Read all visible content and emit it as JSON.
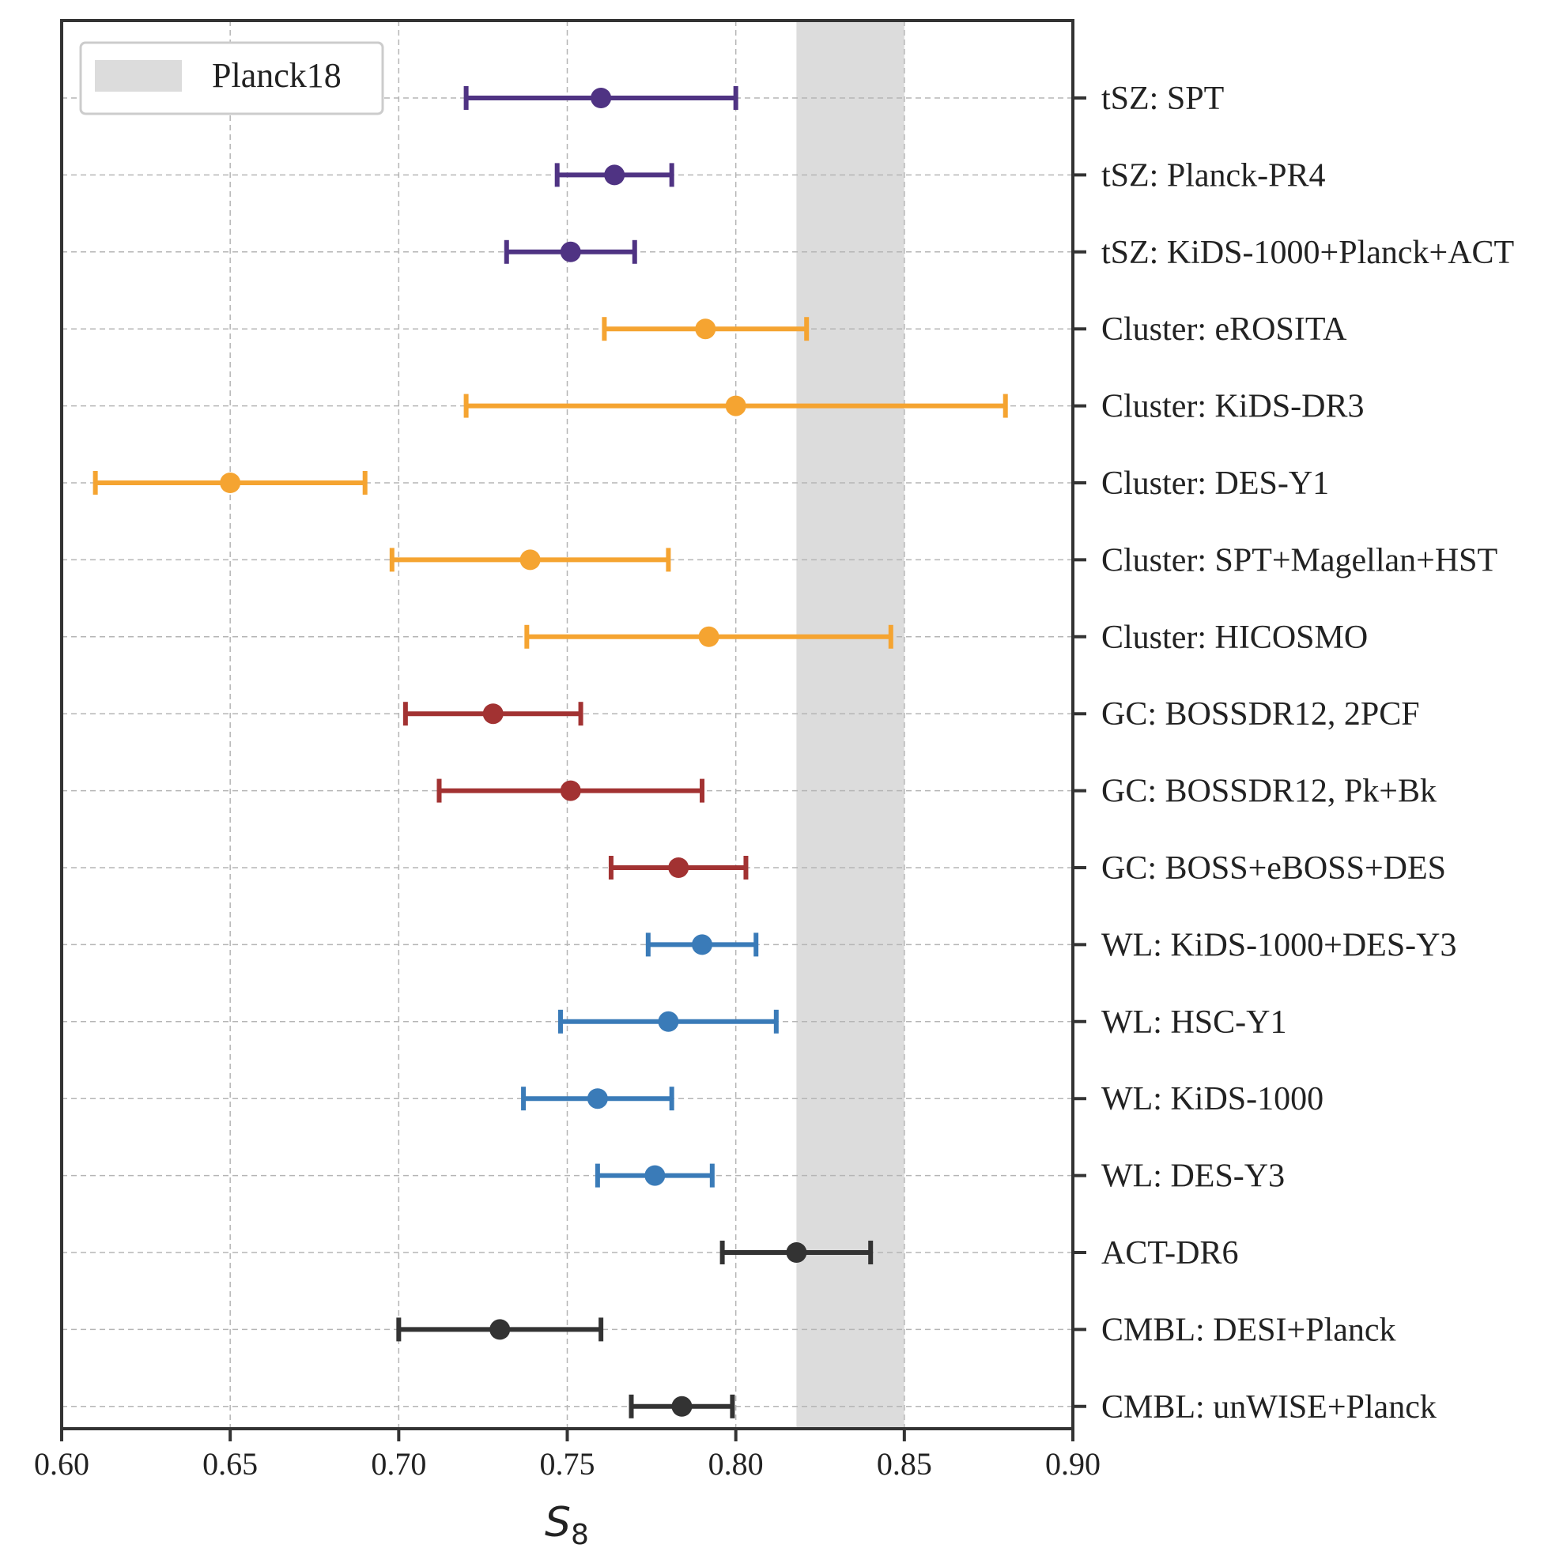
{
  "chart_data": {
    "type": "errorbar",
    "title": "",
    "xlabel": "S",
    "xlabel_subscript": "8",
    "ylabel": "",
    "xlim": [
      0.6,
      0.9
    ],
    "xticks": [
      "0.60",
      "0.65",
      "0.70",
      "0.75",
      "0.80",
      "0.85",
      "0.90"
    ],
    "grid": true,
    "legend": {
      "position": "top-left",
      "entries": [
        {
          "label": "Planck18",
          "color": "#dcdcdc"
        }
      ]
    },
    "reference_band": {
      "name": "Planck18",
      "xmin": 0.818,
      "xmax": 0.85,
      "color": "#dcdcdc"
    },
    "colors": {
      "tSZ": "#4f3383",
      "Cluster": "#f5a431",
      "GC": "#a23232",
      "WL": "#3a7bb8",
      "CMB": "#333333"
    },
    "points": [
      {
        "label": "tSZ: SPT",
        "value": 0.76,
        "low": 0.72,
        "high": 0.8,
        "group": "tSZ"
      },
      {
        "label": "tSZ: Planck-PR4",
        "value": 0.764,
        "low": 0.747,
        "high": 0.781,
        "group": "tSZ"
      },
      {
        "label": "tSZ: KiDS-1000+Planck+ACT",
        "value": 0.751,
        "low": 0.732,
        "high": 0.77,
        "group": "tSZ"
      },
      {
        "label": "Cluster: eROSITA",
        "value": 0.791,
        "low": 0.761,
        "high": 0.821,
        "group": "Cluster"
      },
      {
        "label": "Cluster: KiDS-DR3",
        "value": 0.8,
        "low": 0.72,
        "high": 0.88,
        "group": "Cluster"
      },
      {
        "label": "Cluster: DES-Y1",
        "value": 0.65,
        "low": 0.61,
        "high": 0.69,
        "group": "Cluster"
      },
      {
        "label": "Cluster: SPT+Magellan+HST",
        "value": 0.739,
        "low": 0.698,
        "high": 0.78,
        "group": "Cluster"
      },
      {
        "label": "Cluster: HICOSMO",
        "value": 0.792,
        "low": 0.738,
        "high": 0.846,
        "group": "Cluster"
      },
      {
        "label": "GC: BOSSDR12, 2PCF",
        "value": 0.728,
        "low": 0.702,
        "high": 0.754,
        "group": "GC"
      },
      {
        "label": "GC: BOSSDR12, Pk+Bk",
        "value": 0.751,
        "low": 0.712,
        "high": 0.79,
        "group": "GC"
      },
      {
        "label": "GC: BOSS+eBOSS+DES",
        "value": 0.783,
        "low": 0.763,
        "high": 0.803,
        "group": "GC"
      },
      {
        "label": "WL: KiDS-1000+DES-Y3",
        "value": 0.79,
        "low": 0.774,
        "high": 0.806,
        "group": "WL"
      },
      {
        "label": "WL: HSC-Y1",
        "value": 0.78,
        "low": 0.748,
        "high": 0.812,
        "group": "WL"
      },
      {
        "label": "WL: KiDS-1000",
        "value": 0.759,
        "low": 0.737,
        "high": 0.781,
        "group": "WL"
      },
      {
        "label": "WL: DES-Y3",
        "value": 0.776,
        "low": 0.759,
        "high": 0.793,
        "group": "WL"
      },
      {
        "label": "ACT-DR6",
        "value": 0.818,
        "low": 0.796,
        "high": 0.84,
        "group": "CMB"
      },
      {
        "label": "CMBL: DESI+Planck",
        "value": 0.73,
        "low": 0.7,
        "high": 0.76,
        "group": "CMB"
      },
      {
        "label": "CMBL: unWISE+Planck",
        "value": 0.784,
        "low": 0.769,
        "high": 0.799,
        "group": "CMB"
      }
    ]
  }
}
